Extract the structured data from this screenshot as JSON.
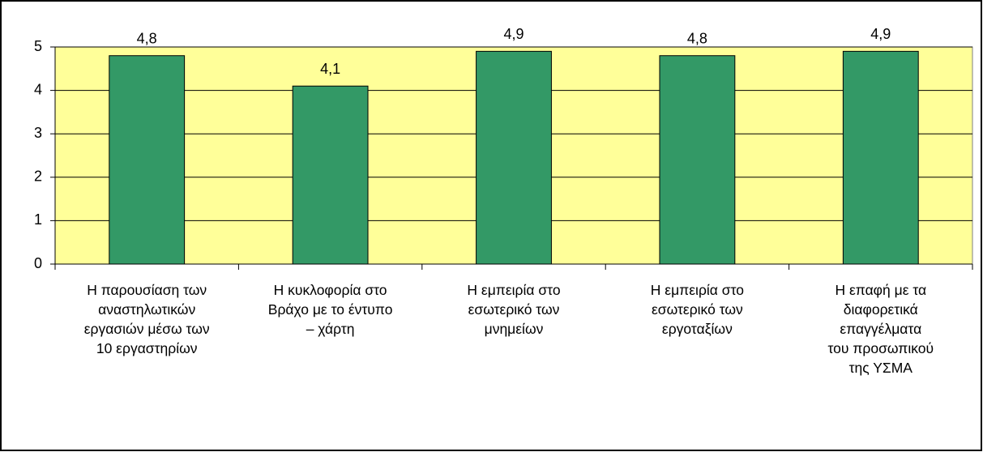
{
  "chart_data": {
    "type": "bar",
    "categories": [
      "Η παρουσίαση των\nαναστηλωτικών\nεργασιών μέσω των\n10 εργαστηρίων",
      "Η κυκλοφορία στο\nΒράχο με το έντυπο\n– χάρτη",
      "Η εμπειρία στο\nεσωτερικό των\nμνημείων",
      "Η εμπειρία στο\nεσωτερικό των\nεργοταξίων",
      "Η επαφή με τα\nδιαφορετικά\nεπαγγέλματα\nτου προσωπικού\nτης ΥΣΜΑ"
    ],
    "values": [
      4.8,
      4.1,
      4.9,
      4.8,
      4.9
    ],
    "value_labels": [
      "4,8",
      "4,1",
      "4,9",
      "4,8",
      "4,9"
    ],
    "color": "#339966",
    "plot_background": "#ffff99",
    "ylim": [
      0,
      5
    ],
    "yticks": [
      0,
      1,
      2,
      3,
      4,
      5
    ],
    "grid": true
  }
}
